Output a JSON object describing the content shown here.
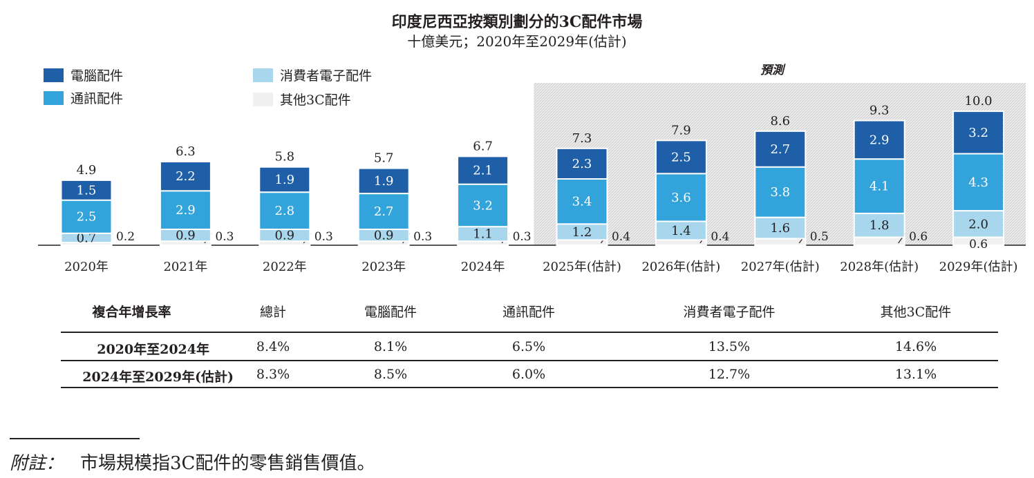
{
  "title": "印度尼西亞按類別劃分的3C配件市場",
  "subtitle": "十億美元；2020年至2029年(估計)",
  "forecast_label": "預測",
  "legend": [
    {
      "label": "電腦配件",
      "color": "#1f5fa8"
    },
    {
      "label": "通訊配件",
      "color": "#33a3dc"
    },
    {
      "label": "消費者電子配件",
      "color": "#a8d6ec"
    },
    {
      "label": "其他3C配件",
      "color": "#f0f0f0"
    }
  ],
  "chart_data": {
    "type": "bar",
    "stacked": true,
    "title": "印度尼西亞按類別劃分的3C配件市場",
    "ylabel": "十億美元",
    "categories": [
      "2020年",
      "2021年",
      "2022年",
      "2023年",
      "2024年",
      "2025年(估計)",
      "2026年(估計)",
      "2027年(估計)",
      "2028年(估計)",
      "2029年(估計)"
    ],
    "series": [
      {
        "name": "其他3C配件",
        "values": [
          0.2,
          0.3,
          0.3,
          0.3,
          0.3,
          0.4,
          0.4,
          0.5,
          0.6,
          0.6
        ]
      },
      {
        "name": "消費者電子配件",
        "values": [
          0.7,
          0.9,
          0.9,
          0.9,
          1.1,
          1.2,
          1.4,
          1.6,
          1.8,
          2.0
        ]
      },
      {
        "name": "通訊配件",
        "values": [
          2.5,
          2.9,
          2.8,
          2.7,
          3.2,
          3.4,
          3.6,
          3.8,
          4.1,
          4.3
        ]
      },
      {
        "name": "電腦配件",
        "values": [
          1.5,
          2.2,
          1.9,
          1.9,
          2.1,
          2.3,
          2.5,
          2.7,
          2.9,
          3.2
        ]
      }
    ],
    "totals": [
      "4.9",
      "6.3",
      "5.8",
      "5.7",
      "6.7",
      "7.3",
      "7.9",
      "8.6",
      "9.3",
      "10.0"
    ],
    "other_labels": [
      "0.2",
      "0.3",
      "0.3",
      "0.3",
      "0.3",
      "0.4",
      "0.4",
      "0.5",
      "0.6",
      "0.6"
    ],
    "consumer_labels": [
      "0.7",
      "0.9",
      "0.9",
      "0.9",
      "1.1",
      "1.2",
      "1.4",
      "1.6",
      "1.8",
      "2.0"
    ],
    "comm_labels": [
      "2.5",
      "2.9",
      "2.8",
      "2.7",
      "3.2",
      "3.4",
      "3.6",
      "3.8",
      "4.1",
      "4.3"
    ],
    "computer_labels": [
      "1.5",
      "2.2",
      "1.9",
      "1.9",
      "2.1",
      "2.3",
      "2.5",
      "2.7",
      "2.9",
      "3.2"
    ],
    "forecast_start_index": 5,
    "ylim": [
      0,
      10.5
    ]
  },
  "cagr_table": {
    "header": [
      "複合年增長率",
      "總計",
      "電腦配件",
      "通訊配件",
      "消費者電子配件",
      "其他3C配件"
    ],
    "rows": [
      {
        "period": "2020年至2024年",
        "values": [
          "8.4%",
          "8.1%",
          "6.5%",
          "13.5%",
          "14.6%"
        ]
      },
      {
        "period": "2024年至2029年(估計)",
        "values": [
          "8.3%",
          "8.5%",
          "6.0%",
          "12.7%",
          "13.1%"
        ]
      }
    ]
  },
  "note": {
    "label": "附註：",
    "text": "市場規模指3C配件的零售銷售價值。"
  }
}
